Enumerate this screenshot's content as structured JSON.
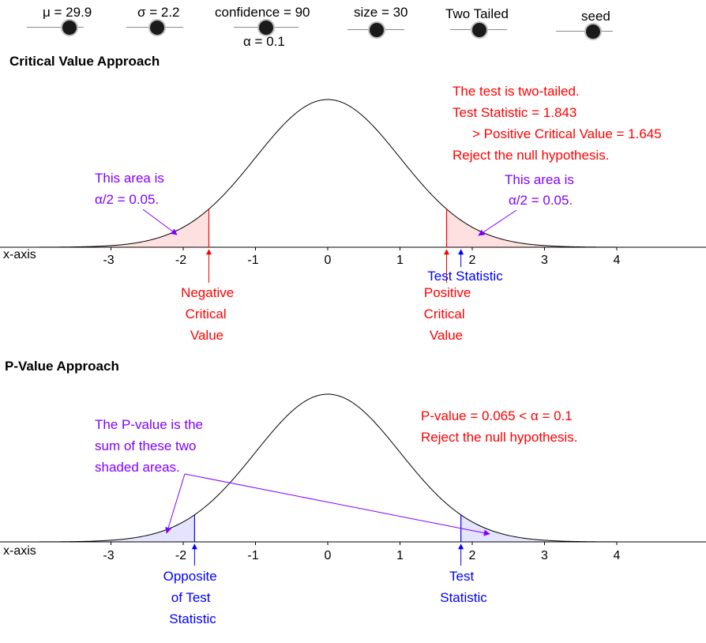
{
  "sliders": [
    {
      "label": "μ = 29.9",
      "knob": 0.72
    },
    {
      "label": "σ = 2.2",
      "knob": 0.55
    },
    {
      "label": "confidence = 90",
      "knob": 0.5
    },
    {
      "label": "size = 30",
      "knob": 0.5
    },
    {
      "label": "Two Tailed",
      "knob": 0.5
    },
    {
      "label": "seed",
      "knob": 0.65
    }
  ],
  "alpha_text": "α = 0.1",
  "sections": {
    "critical": {
      "title": "Critical Value Approach"
    },
    "pvalue": {
      "title": "P-Value Approach"
    }
  },
  "colors": {
    "reject": "#ff0000",
    "note": "#8000ff",
    "stat": "#0000ff",
    "curve": "#000000",
    "crit_fill": "#ffe0e0",
    "p_fill": "#e4e4ff"
  },
  "chart_data": [
    {
      "type": "area",
      "title": "Critical Value Approach",
      "distribution": "standard normal",
      "xlabel": "x-axis",
      "xticks": [
        -3,
        -2,
        -1,
        0,
        1,
        2,
        3,
        4
      ],
      "xlim": [
        -4.5,
        5.2
      ],
      "critical_values": [
        -1.645,
        1.645
      ],
      "test_statistic": 1.843,
      "shaded": [
        [
          -4.5,
          -1.645
        ],
        [
          1.645,
          5.2
        ]
      ],
      "tail_area_each": 0.05,
      "annotations": {
        "result": [
          "The test is two-tailed.",
          "Test Statistic = 1.843",
          "> Positive Critical Value = 1.645",
          "Reject the null hypothesis."
        ],
        "left_area": [
          "This area is",
          "α/2 = 0.05."
        ],
        "right_area": [
          "This area is",
          "α/2 = 0.05."
        ],
        "neg_crit": [
          "Negative",
          "Critical",
          "Value"
        ],
        "pos_crit": [
          "Positive",
          "Critical",
          "Value"
        ],
        "test_stat": "Test Statistic"
      }
    },
    {
      "type": "area",
      "title": "P-Value Approach",
      "distribution": "standard normal",
      "xlabel": "x-axis",
      "xticks": [
        -3,
        -2,
        -1,
        0,
        1,
        2,
        3,
        4
      ],
      "xlim": [
        -4.5,
        5.2
      ],
      "test_statistic": 1.843,
      "opposite_test_statistic": -1.843,
      "shaded": [
        [
          -4.5,
          -1.843
        ],
        [
          1.843,
          5.2
        ]
      ],
      "p_value": 0.065,
      "alpha": 0.1,
      "annotations": {
        "result": [
          "P-value = 0.065 < α = 0.1",
          "Reject the null hypothesis."
        ],
        "explain": [
          "The P-value is the",
          "sum of these two",
          "shaded areas."
        ],
        "opposite": [
          "Opposite",
          "of Test",
          "Statistic"
        ],
        "stat": [
          "Test",
          "Statistic"
        ]
      }
    }
  ]
}
